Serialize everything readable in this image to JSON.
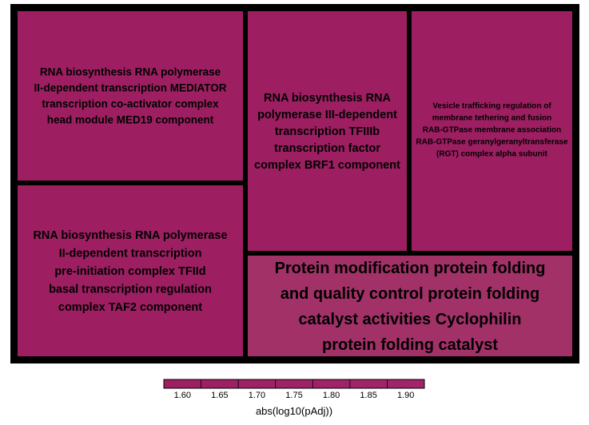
{
  "chart_data": {
    "type": "treemap",
    "color_scale": {
      "label": "abs(log10(pAdj))",
      "ticks": [
        "1.60",
        "1.65",
        "1.70",
        "1.75",
        "1.80",
        "1.85",
        "1.90"
      ],
      "colors": [
        "#9d1f62",
        "#a0256a"
      ]
    },
    "tiles": [
      {
        "name": "RNA biosynthesis RNA polymerase II-dependent transcription MEDIATOR transcription co-activator complex head module MED19 component",
        "lines": [
          "RNA biosynthesis RNA polymerase",
          "II-dependent transcription MEDIATOR",
          "transcription co-activator complex",
          "head module MED19 component"
        ],
        "color": "#9d1f62"
      },
      {
        "name": "RNA biosynthesis RNA polymerase II-dependent transcription pre-initiation complex TFIId basal transcription regulation complex TAF2 component",
        "lines": [
          "RNA biosynthesis RNA polymerase",
          "II-dependent transcription",
          "pre-initiation complex TFIId",
          "basal transcription regulation",
          "complex TAF2 component"
        ],
        "color": "#9d1f62"
      },
      {
        "name": "RNA biosynthesis RNA polymerase III-dependent transcription TFIIIb transcription factor complex BRF1 component",
        "lines": [
          "RNA biosynthesis RNA",
          "polymerase III-dependent",
          "transcription TFIIIb",
          "transcription factor",
          "complex BRF1 component"
        ],
        "color": "#9d1f62"
      },
      {
        "name": "Vesicle trafficking regulation of membrane tethering and fusion RAB-GTPase membrane association RAB-GTPase geranylgeranyltransferase (RGT) complex alpha subunit",
        "lines": [
          "Vesicle trafficking regulation of",
          "membrane tethering and fusion",
          "RAB-GTPase membrane association",
          "RAB-GTPase geranylgeranyltransferase",
          "(RGT) complex alpha subunit"
        ],
        "color": "#9d1f62"
      },
      {
        "name": "Protein modification protein folding and quality control protein folding catalyst activities Cyclophilin protein folding catalyst",
        "lines": [
          "Protein modification protein folding",
          "and quality control protein folding",
          "catalyst activities Cyclophilin",
          "protein folding catalyst"
        ],
        "color": "#a23167"
      }
    ]
  }
}
